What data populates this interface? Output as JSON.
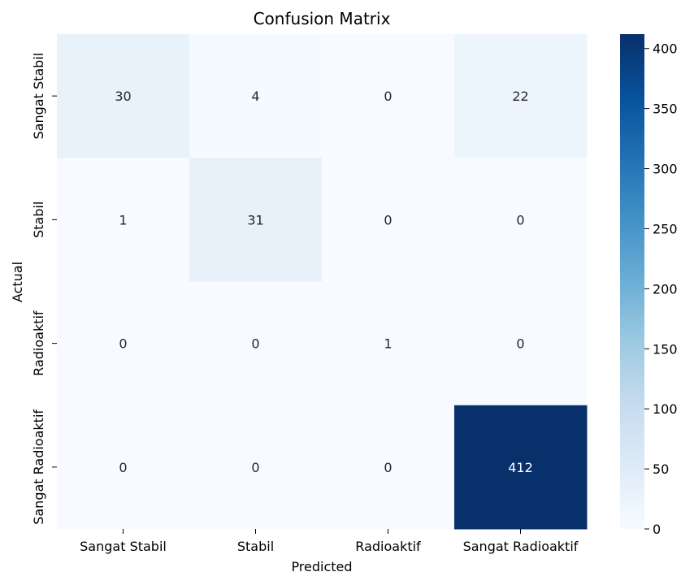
{
  "chart_data": {
    "type": "heatmap",
    "title": "Confusion Matrix",
    "xlabel": "Predicted",
    "ylabel": "Actual",
    "x_categories": [
      "Sangat Stabil",
      "Stabil",
      "Radioaktif",
      "Sangat Radioaktif"
    ],
    "y_categories": [
      "Sangat Stabil",
      "Stabil",
      "Radioaktif",
      "Sangat Radioaktif"
    ],
    "values": [
      [
        30,
        4,
        0,
        22
      ],
      [
        1,
        31,
        0,
        0
      ],
      [
        0,
        0,
        1,
        0
      ],
      [
        0,
        0,
        0,
        412
      ]
    ],
    "colorbar": {
      "min": 0,
      "max": 412,
      "ticks": [
        0,
        50,
        100,
        150,
        200,
        250,
        300,
        350,
        400
      ]
    },
    "colormap": "Blues",
    "colors": {
      "light": "#f7fbff",
      "dark": "#08306b",
      "text_on_light": "#262626",
      "text_on_dark": "#ffffff"
    }
  }
}
